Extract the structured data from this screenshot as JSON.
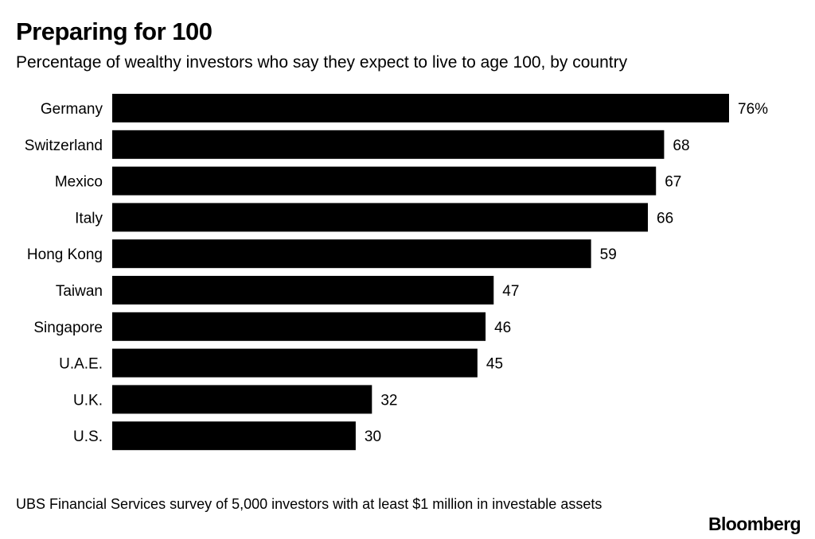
{
  "header": {
    "title": "Preparing for 100",
    "subtitle": "Percentage of wealthy investors who say they expect to live to age 100, by country"
  },
  "chart_data": {
    "type": "bar",
    "orientation": "horizontal",
    "title": "Preparing for 100",
    "subtitle": "Percentage of wealthy investors who say they expect to live to age 100, by country",
    "categories": [
      "Germany",
      "Switzerland",
      "Mexico",
      "Italy",
      "Hong Kong",
      "Taiwan",
      "Singapore",
      "U.A.E.",
      "U.K.",
      "U.S."
    ],
    "values": [
      76,
      68,
      67,
      66,
      59,
      47,
      46,
      45,
      32,
      30
    ],
    "value_labels": [
      "76%",
      "68",
      "67",
      "66",
      "59",
      "47",
      "46",
      "45",
      "32",
      "30"
    ],
    "bar_color": "#000000",
    "xlabel": "",
    "ylabel": "",
    "xlim": [
      0,
      76
    ],
    "grid": false,
    "legend": "none"
  },
  "footer": {
    "source": "UBS Financial Services survey of 5,000 investors with at least $1 million in investable assets",
    "brand": "Bloomberg"
  }
}
